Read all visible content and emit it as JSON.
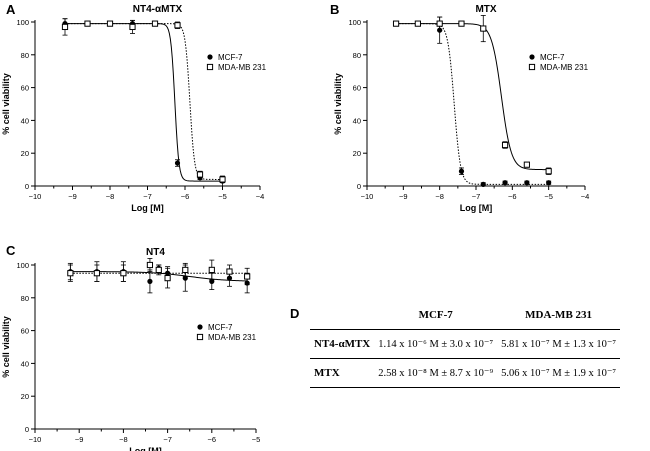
{
  "panels": {
    "A": "A",
    "B": "B",
    "C": "C",
    "D": "D"
  },
  "colors": {
    "line": "#000000",
    "axis": "#000000"
  },
  "chart_data": [
    {
      "id": "A",
      "type": "line",
      "title": "NT4-αMTX",
      "xlabel": "Log [M]",
      "ylabel": "% cell viability",
      "xlim": [
        -10,
        -4
      ],
      "ylim": [
        0,
        100
      ],
      "xticks": [
        -10,
        -9,
        -8,
        -7,
        -6,
        -5,
        -4
      ],
      "yticks": [
        0,
        20,
        40,
        60,
        80,
        100
      ],
      "legend": [
        "MCF-7",
        "MDA-MB 231"
      ],
      "series": [
        {
          "name": "MCF-7",
          "marker": "filled-circle",
          "line": "solid",
          "x": [
            -9.2,
            -8.6,
            -8.0,
            -7.4,
            -6.8,
            -6.2,
            -5.6,
            -5.0
          ],
          "y": [
            99,
            99,
            99,
            99,
            99,
            14,
            5,
            3
          ],
          "err": [
            3,
            1,
            1,
            2,
            1,
            2,
            1,
            3
          ],
          "fit": {
            "top": 99,
            "bottom": 3,
            "logec50": -6.27,
            "hill": -8
          }
        },
        {
          "name": "MDA-MB 231",
          "marker": "open-square",
          "line": "dotted",
          "x": [
            -9.2,
            -8.6,
            -8.0,
            -7.4,
            -6.8,
            -6.2,
            -5.6,
            -5.0
          ],
          "y": [
            97,
            99,
            99,
            97,
            99,
            98,
            7,
            4
          ],
          "err": [
            5,
            1,
            1,
            4,
            1,
            2,
            2,
            2
          ],
          "fit": {
            "top": 99,
            "bottom": 4,
            "logec50": -5.87,
            "hill": -7
          }
        }
      ]
    },
    {
      "id": "B",
      "type": "line",
      "title": "MTX",
      "xlabel": "Log [M]",
      "ylabel": "% cell viability",
      "xlim": [
        -10,
        -4
      ],
      "ylim": [
        0,
        100
      ],
      "xticks": [
        -10,
        -9,
        -8,
        -7,
        -6,
        -5,
        -4
      ],
      "yticks": [
        0,
        20,
        40,
        60,
        80,
        100
      ],
      "legend": [
        "MCF-7",
        "MDA-MB 231"
      ],
      "series": [
        {
          "name": "MCF-7",
          "marker": "filled-circle",
          "line": "dotted",
          "x": [
            -9.2,
            -8.6,
            -8.0,
            -7.4,
            -6.8,
            -6.2,
            -5.6,
            -5.0
          ],
          "y": [
            99,
            99,
            95,
            9,
            1,
            2,
            2,
            2
          ],
          "err": [
            1,
            1,
            8,
            2,
            1,
            1,
            1,
            1
          ],
          "fit": {
            "top": 99,
            "bottom": 1,
            "logec50": -7.6,
            "hill": -5
          }
        },
        {
          "name": "MDA-MB 231",
          "marker": "open-square",
          "line": "solid",
          "x": [
            -9.2,
            -8.6,
            -8.0,
            -7.4,
            -6.8,
            -6.2,
            -5.6,
            -5.0
          ],
          "y": [
            99,
            99,
            99,
            99,
            96,
            25,
            13,
            9
          ],
          "err": [
            1,
            1,
            4,
            1,
            8,
            2,
            1,
            2
          ],
          "fit": {
            "top": 99,
            "bottom": 10,
            "logec50": -6.3,
            "hill": -3.2
          }
        }
      ]
    },
    {
      "id": "C",
      "type": "line",
      "title": "NT4",
      "xlabel": "Log [M]",
      "ylabel": "% cell viability",
      "xlim": [
        -10,
        -5
      ],
      "ylim": [
        0,
        100
      ],
      "xticks": [
        -10,
        -9,
        -8,
        -7,
        -6,
        -5
      ],
      "yticks": [
        0,
        20,
        40,
        60,
        80,
        100
      ],
      "legend": [
        "MCF-7",
        "MDA-MB 231"
      ],
      "series": [
        {
          "name": "MCF-7",
          "marker": "filled-circle",
          "line": "solid",
          "x": [
            -9.2,
            -8.6,
            -8.0,
            -7.4,
            -7.2,
            -7.0,
            -6.6,
            -6.0,
            -5.6,
            -5.2
          ],
          "y": [
            96,
            96,
            96,
            90,
            98,
            95,
            92,
            90,
            92,
            89
          ],
          "err": [
            5,
            6,
            6,
            7,
            2,
            4,
            8,
            5,
            5,
            6
          ],
          "fit": {
            "top": 96,
            "bottom": 90,
            "logec50": -6.5,
            "hill": -1
          }
        },
        {
          "name": "MDA-MB 231",
          "marker": "open-square",
          "line": "dotted",
          "x": [
            -9.2,
            -8.6,
            -8.0,
            -7.4,
            -7.2,
            -7.0,
            -6.6,
            -6.0,
            -5.6,
            -5.2
          ],
          "y": [
            95,
            95,
            95,
            100,
            97,
            92,
            97,
            97,
            96,
            93
          ],
          "err": [
            5,
            5,
            5,
            4,
            3,
            6,
            4,
            6,
            4,
            5
          ],
          "fit": {
            "top": 95,
            "bottom": 95,
            "logec50": -7,
            "hill": -1
          }
        }
      ]
    }
  ],
  "table": {
    "headers": [
      "",
      "MCF-7",
      "MDA-MB 231"
    ],
    "rows": [
      {
        "label": "NT4-αMTX",
        "mcf7": "1.14 x 10⁻⁶ M ± 3.0  x 10⁻⁷",
        "mda": "5.81 x 10⁻⁷ M ± 1.3 x 10⁻⁷"
      },
      {
        "label": "MTX",
        "mcf7": "2.58 x 10⁻⁸ M ± 8.7 x 10⁻⁹",
        "mda": "5.06 x 10⁻⁷ M ± 1.9 x 10⁻⁷"
      }
    ]
  }
}
